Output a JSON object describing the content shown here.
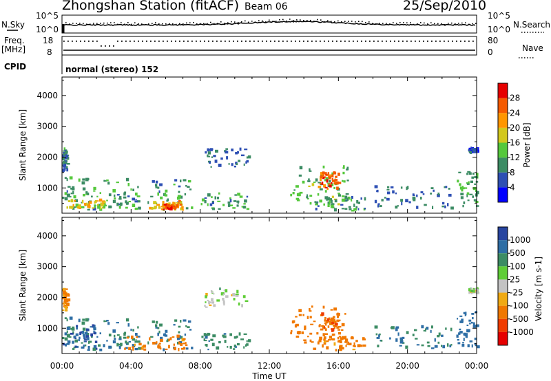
{
  "header": {
    "title": "Zhongshan Station (fitACF)",
    "beam": "Beam 06",
    "date": "25/Sep/2010"
  },
  "top_panels": {
    "nsky_label": "N.Sky",
    "nsky_ticks": [
      "10^5",
      "10^0"
    ],
    "nsearch_label": "N.Search",
    "nsearch_ticks": [
      "10^5",
      "10^0"
    ],
    "freq_label": "Freq.",
    "freq_unit": "[MHz]",
    "freq_ticks": [
      "18",
      "8"
    ],
    "nave_label": "Nave",
    "nave_ticks": [
      "80",
      "0"
    ],
    "cpid_label": "CPID",
    "cpid_text": "normal (stereo) 152"
  },
  "colors": {
    "power": [
      "#0000ff",
      "#2e50b4",
      "#3c8c64",
      "#55c83c",
      "#d2c81e",
      "#ff9600",
      "#f55a00",
      "#e60000"
    ],
    "velocity_pos": [
      "#2845a0",
      "#2e6ea5",
      "#3c8c64",
      "#5fcd37"
    ],
    "velocity_zero": "#c3c3c3",
    "velocity_neg": [
      "#f0aa14",
      "#f07800",
      "#f03c00",
      "#e60000"
    ]
  },
  "chart_data": [
    {
      "type": "heatmap",
      "name": "power",
      "x_unit": "hours UT",
      "xlim": [
        0,
        24
      ],
      "ylabel": "Slant Range [km]",
      "ylim": [
        180,
        4600
      ],
      "yticks": [
        "1000",
        "2000",
        "3000",
        "4000"
      ],
      "colorbar": {
        "label": "Power [dB]",
        "ticks": [
          "4",
          "8",
          "12",
          "16",
          "20",
          "24",
          "28"
        ],
        "range": [
          0,
          32
        ]
      },
      "regions": [
        {
          "t0": 0.0,
          "t1": 7.6,
          "r0": 240,
          "r1": 1300,
          "value": 11
        },
        {
          "t0": 0.2,
          "t1": 2.5,
          "r0": 300,
          "r1": 560,
          "value": 18
        },
        {
          "t0": 5.0,
          "t1": 7.0,
          "r0": 250,
          "r1": 520,
          "value": 21
        },
        {
          "t0": 5.8,
          "t1": 6.6,
          "r0": 260,
          "r1": 420,
          "value": 27
        },
        {
          "t0": 0.0,
          "t1": 0.3,
          "r0": 1500,
          "r1": 2250,
          "value": 9
        },
        {
          "t0": 8.2,
          "t1": 10.8,
          "r0": 1650,
          "r1": 2250,
          "value": 8
        },
        {
          "t0": 8.0,
          "t1": 10.8,
          "r0": 280,
          "r1": 800,
          "value": 11
        },
        {
          "t0": 13.2,
          "t1": 16.5,
          "r0": 400,
          "r1": 1700,
          "value": 13
        },
        {
          "t0": 14.8,
          "t1": 16.0,
          "r0": 900,
          "r1": 1450,
          "value": 26
        },
        {
          "t0": 14.5,
          "t1": 17.5,
          "r0": 220,
          "r1": 650,
          "value": 10
        },
        {
          "t0": 18.0,
          "t1": 22.5,
          "r0": 300,
          "r1": 1000,
          "value": 8
        },
        {
          "t0": 22.8,
          "t1": 24.0,
          "r0": 350,
          "r1": 1500,
          "value": 12
        },
        {
          "t0": 23.5,
          "t1": 24.0,
          "r0": 2100,
          "r1": 2250,
          "value": 6
        }
      ]
    },
    {
      "type": "heatmap",
      "name": "velocity",
      "x_unit": "hours UT",
      "xlim": [
        0,
        24
      ],
      "xlabel": "Time UT",
      "xtick_labels": [
        "00:00",
        "04:00",
        "08:00",
        "12:00",
        "16:00",
        "20:00",
        "00:00"
      ],
      "ylabel": "Slant Range [km]",
      "ylim": [
        180,
        4600
      ],
      "yticks": [
        "1000",
        "2000",
        "3000",
        "4000"
      ],
      "colorbar": {
        "label": "Velocity [m s-1]",
        "ticks": [
          "1000",
          "500",
          "100",
          "25",
          "-25",
          "-100",
          "-500",
          "-1000"
        ]
      },
      "regions": [
        {
          "t0": 0.0,
          "t1": 7.6,
          "r0": 240,
          "r1": 1300,
          "value": 100
        },
        {
          "t0": 3.5,
          "t1": 7.2,
          "r0": 250,
          "r1": 700,
          "value": -150
        },
        {
          "t0": 0.0,
          "t1": 2.0,
          "r0": 280,
          "r1": 1100,
          "value": 600
        },
        {
          "t0": 0.0,
          "t1": 0.3,
          "r0": 1500,
          "r1": 2250,
          "value": -120
        },
        {
          "t0": 8.2,
          "t1": 10.8,
          "r0": 1650,
          "r1": 2250,
          "value": 0
        },
        {
          "t0": 8.0,
          "t1": 10.8,
          "r0": 280,
          "r1": 800,
          "value": 80
        },
        {
          "t0": 13.2,
          "t1": 16.5,
          "r0": 500,
          "r1": 1700,
          "value": -200
        },
        {
          "t0": 14.8,
          "t1": 16.0,
          "r0": 850,
          "r1": 1450,
          "value": -400
        },
        {
          "t0": 14.5,
          "t1": 17.5,
          "r0": 220,
          "r1": 650,
          "value": -150
        },
        {
          "t0": 18.0,
          "t1": 22.5,
          "r0": 300,
          "r1": 1000,
          "value": 100
        },
        {
          "t0": 22.8,
          "t1": 24.0,
          "r0": 350,
          "r1": 1500,
          "value": 200
        },
        {
          "t0": 23.5,
          "t1": 24.0,
          "r0": 2100,
          "r1": 2250,
          "value": 0
        }
      ]
    }
  ]
}
